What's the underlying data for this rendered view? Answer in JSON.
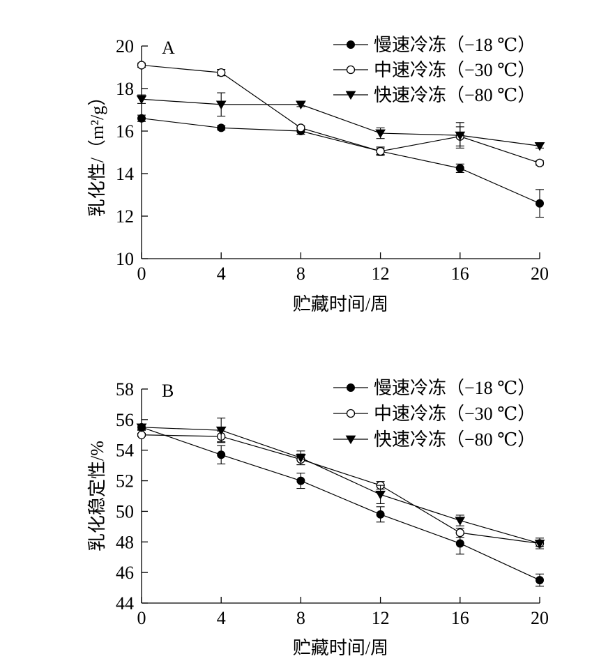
{
  "chart_data": [
    {
      "type": "line",
      "panel_label": "A",
      "xlabel": "贮藏时间/周",
      "ylabel": "乳化性/（m²/g）",
      "x": [
        0,
        4,
        8,
        12,
        16,
        20
      ],
      "xticks": [
        "0",
        "4",
        "8",
        "12",
        "16",
        "20"
      ],
      "yticks": [
        "10",
        "12",
        "14",
        "16",
        "18",
        "20"
      ],
      "xlim": [
        0,
        20
      ],
      "ylim": [
        10,
        20
      ],
      "grid": false,
      "legend_position": "top-right",
      "series": [
        {
          "name": "慢速冷冻（−18 ℃）",
          "marker": "filled-circle",
          "values": [
            16.6,
            16.15,
            16.0,
            15.05,
            14.25,
            12.6
          ],
          "errors": [
            0.15,
            0.1,
            0.15,
            0.2,
            0.2,
            0.65
          ]
        },
        {
          "name": "中速冷冻（−30 ℃）",
          "marker": "open-circle",
          "values": [
            19.1,
            18.75,
            16.15,
            15.05,
            15.75,
            14.5
          ],
          "errors": [
            0.1,
            0.15,
            0.1,
            0.15,
            0.45,
            0.1
          ]
        },
        {
          "name": "快速冷冻（−80 ℃）",
          "marker": "filled-triangle-down",
          "values": [
            17.5,
            17.25,
            17.25,
            15.9,
            15.8,
            15.3
          ],
          "errors": [
            0.2,
            0.55,
            0.1,
            0.25,
            0.6,
            0.1
          ]
        }
      ]
    },
    {
      "type": "line",
      "panel_label": "B",
      "xlabel": "贮藏时间/周",
      "ylabel": "乳化稳定性/%",
      "x": [
        0,
        4,
        8,
        12,
        16,
        20
      ],
      "xticks": [
        "0",
        "4",
        "8",
        "12",
        "16",
        "20"
      ],
      "yticks": [
        "44",
        "46",
        "48",
        "50",
        "52",
        "54",
        "56",
        "58"
      ],
      "xlim": [
        0,
        20
      ],
      "ylim": [
        44,
        58
      ],
      "grid": false,
      "legend_position": "top-right",
      "series": [
        {
          "name": "慢速冷冻（−18 ℃）",
          "marker": "filled-circle",
          "values": [
            55.5,
            53.7,
            52.0,
            49.8,
            47.9,
            45.5
          ],
          "errors": [
            0.2,
            0.6,
            0.5,
            0.5,
            0.7,
            0.4
          ]
        },
        {
          "name": "中速冷冻（−30 ℃）",
          "marker": "open-circle",
          "values": [
            55.0,
            54.9,
            53.4,
            51.7,
            48.6,
            47.9
          ],
          "errors": [
            0.1,
            0.35,
            0.35,
            0.25,
            0.3,
            0.35
          ]
        },
        {
          "name": "快速冷冻（−80 ℃）",
          "marker": "filled-triangle-down",
          "values": [
            55.5,
            55.3,
            53.5,
            51.1,
            49.4,
            47.9
          ],
          "errors": [
            0.15,
            0.8,
            0.45,
            0.6,
            0.35,
            0.2
          ]
        }
      ]
    }
  ]
}
